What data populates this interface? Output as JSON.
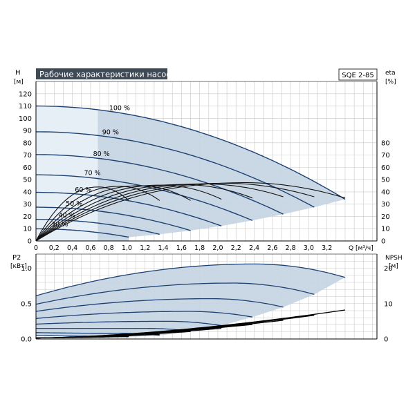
{
  "header": {
    "title": "Рабочие характеристики насоса",
    "model": "SQE 2-85"
  },
  "colors": {
    "title_bg": "#3f4a57",
    "title_text": "#ffffff",
    "area_fill": "#c7d5e3",
    "area_fill_light": "#e6eef6",
    "curve": "#1d4173",
    "eta_curve": "#111111",
    "npsh_curve": "#000000",
    "grid": "#c8c8c8",
    "axis": "#000000"
  },
  "chart_data": [
    {
      "type": "line",
      "name": "head",
      "y_label_main": "H",
      "y_label_unit": "[м]",
      "y2_label_main": "eta",
      "y2_label_unit": "[%]",
      "x_label": "Q [м³/ч]",
      "xlim": [
        0,
        3.75
      ],
      "ylim": [
        0,
        130
      ],
      "y2lim": [
        0,
        130
      ],
      "x_ticks": [
        0,
        0.2,
        0.4,
        0.6,
        0.8,
        1.0,
        1.2,
        1.4,
        1.6,
        1.8,
        2.0,
        2.2,
        2.4,
        2.6,
        2.8,
        3.0,
        3.2
      ],
      "x_tick_labels": [
        "0",
        "0,2",
        "0,4",
        "0,6",
        "0,8",
        "1,0",
        "1,2",
        "1,4",
        "1,6",
        "1,8",
        "2,0",
        "2,2",
        "2,4",
        "2,6",
        "2,8",
        "3,0",
        "3,2"
      ],
      "y_ticks": [
        0,
        10,
        20,
        30,
        40,
        50,
        60,
        70,
        80,
        90,
        100,
        110,
        120
      ],
      "y2_ticks": [
        0,
        10,
        20,
        30,
        40,
        50,
        60,
        70,
        80
      ],
      "grid": true,
      "operating_range_start_q": 0.68,
      "speed_curves": [
        {
          "label": "100 %",
          "h0": 110,
          "qmax": 3.4,
          "hmax": 34
        },
        {
          "label": "90 %",
          "h0": 89,
          "qmax": 3.06,
          "hmax": 27.5
        },
        {
          "label": "80 %",
          "h0": 70.4,
          "qmax": 2.72,
          "hmax": 21.8
        },
        {
          "label": "70 %",
          "h0": 53.9,
          "qmax": 2.38,
          "hmax": 16.7
        },
        {
          "label": "60 %",
          "h0": 39.6,
          "qmax": 2.04,
          "hmax": 12.2
        },
        {
          "label": "50 %",
          "h0": 27.5,
          "qmax": 1.7,
          "hmax": 8.5
        },
        {
          "label": "40 %",
          "h0": 17.6,
          "qmax": 1.36,
          "hmax": 5.4
        },
        {
          "label": "30 %",
          "h0": 9.9,
          "qmax": 1.02,
          "hmax": 3.1
        }
      ],
      "eta_curves": [
        {
          "qmax": 3.4,
          "eta_peak": 47.5,
          "q_peak": 2.3,
          "eta_end": 35
        },
        {
          "qmax": 3.06,
          "eta_peak": 47,
          "q_peak": 2.07,
          "eta_end": 36
        },
        {
          "qmax": 2.72,
          "eta_peak": 46.5,
          "q_peak": 1.84,
          "eta_end": 36
        },
        {
          "qmax": 2.38,
          "eta_peak": 46,
          "q_peak": 1.61,
          "eta_end": 35
        },
        {
          "qmax": 2.04,
          "eta_peak": 45.5,
          "q_peak": 1.38,
          "eta_end": 34
        },
        {
          "qmax": 1.7,
          "eta_peak": 45,
          "q_peak": 1.15,
          "eta_end": 33
        },
        {
          "qmax": 1.36,
          "eta_peak": 44.5,
          "q_peak": 0.92,
          "eta_end": 33
        },
        {
          "qmax": 1.02,
          "eta_peak": 44,
          "q_peak": 0.69,
          "eta_end": 33
        }
      ]
    },
    {
      "type": "line",
      "name": "power",
      "y_label_main": "P2",
      "y_label_unit": "[кВт]",
      "y2_label_main": "NPSH",
      "y2_label_unit": "[м]",
      "xlim": [
        0,
        3.75
      ],
      "ylim": [
        0,
        1.2
      ],
      "y2lim": [
        0,
        24
      ],
      "y_ticks": [
        0,
        0.5,
        1.0
      ],
      "y_tick_labels": [
        "0.0",
        "0.5",
        "1.0"
      ],
      "y2_ticks": [
        0,
        10,
        20
      ],
      "grid": true,
      "power_curves": [
        {
          "p0": 0.61,
          "qmax": 3.4,
          "ppeak": 1.06,
          "qpeak": 2.4,
          "pend": 0.87
        },
        {
          "p0": 0.49,
          "qmax": 3.06,
          "ppeak": 0.79,
          "qpeak": 2.16,
          "pend": 0.63
        },
        {
          "p0": 0.39,
          "qmax": 2.72,
          "ppeak": 0.57,
          "qpeak": 1.92,
          "pend": 0.45
        },
        {
          "p0": 0.29,
          "qmax": 2.38,
          "ppeak": 0.39,
          "qpeak": 1.68,
          "pend": 0.31
        },
        {
          "p0": 0.21,
          "qmax": 2.04,
          "ppeak": 0.25,
          "qpeak": 1.44,
          "pend": 0.19
        },
        {
          "p0": 0.15,
          "qmax": 1.7,
          "ppeak": 0.15,
          "qpeak": 1.2,
          "pend": 0.11
        },
        {
          "p0": 0.09,
          "qmax": 1.36,
          "ppeak": 0.08,
          "qpeak": 0.96,
          "pend": 0.05
        },
        {
          "p0": 0.05,
          "qmax": 1.02,
          "ppeak": 0.04,
          "qpeak": 0.72,
          "pend": 0.03
        }
      ],
      "npsh_curves": [
        {
          "qmax": 3.4,
          "npsh_end": 8.2
        },
        {
          "qmax": 3.06,
          "npsh_end": 6.7
        },
        {
          "qmax": 2.72,
          "npsh_end": 5.3
        },
        {
          "qmax": 2.38,
          "npsh_end": 4.1
        },
        {
          "qmax": 2.04,
          "npsh_end": 3.0
        },
        {
          "qmax": 1.7,
          "npsh_end": 2.1
        },
        {
          "qmax": 1.36,
          "npsh_end": 1.3
        },
        {
          "qmax": 1.02,
          "npsh_end": 0.7
        }
      ]
    }
  ]
}
